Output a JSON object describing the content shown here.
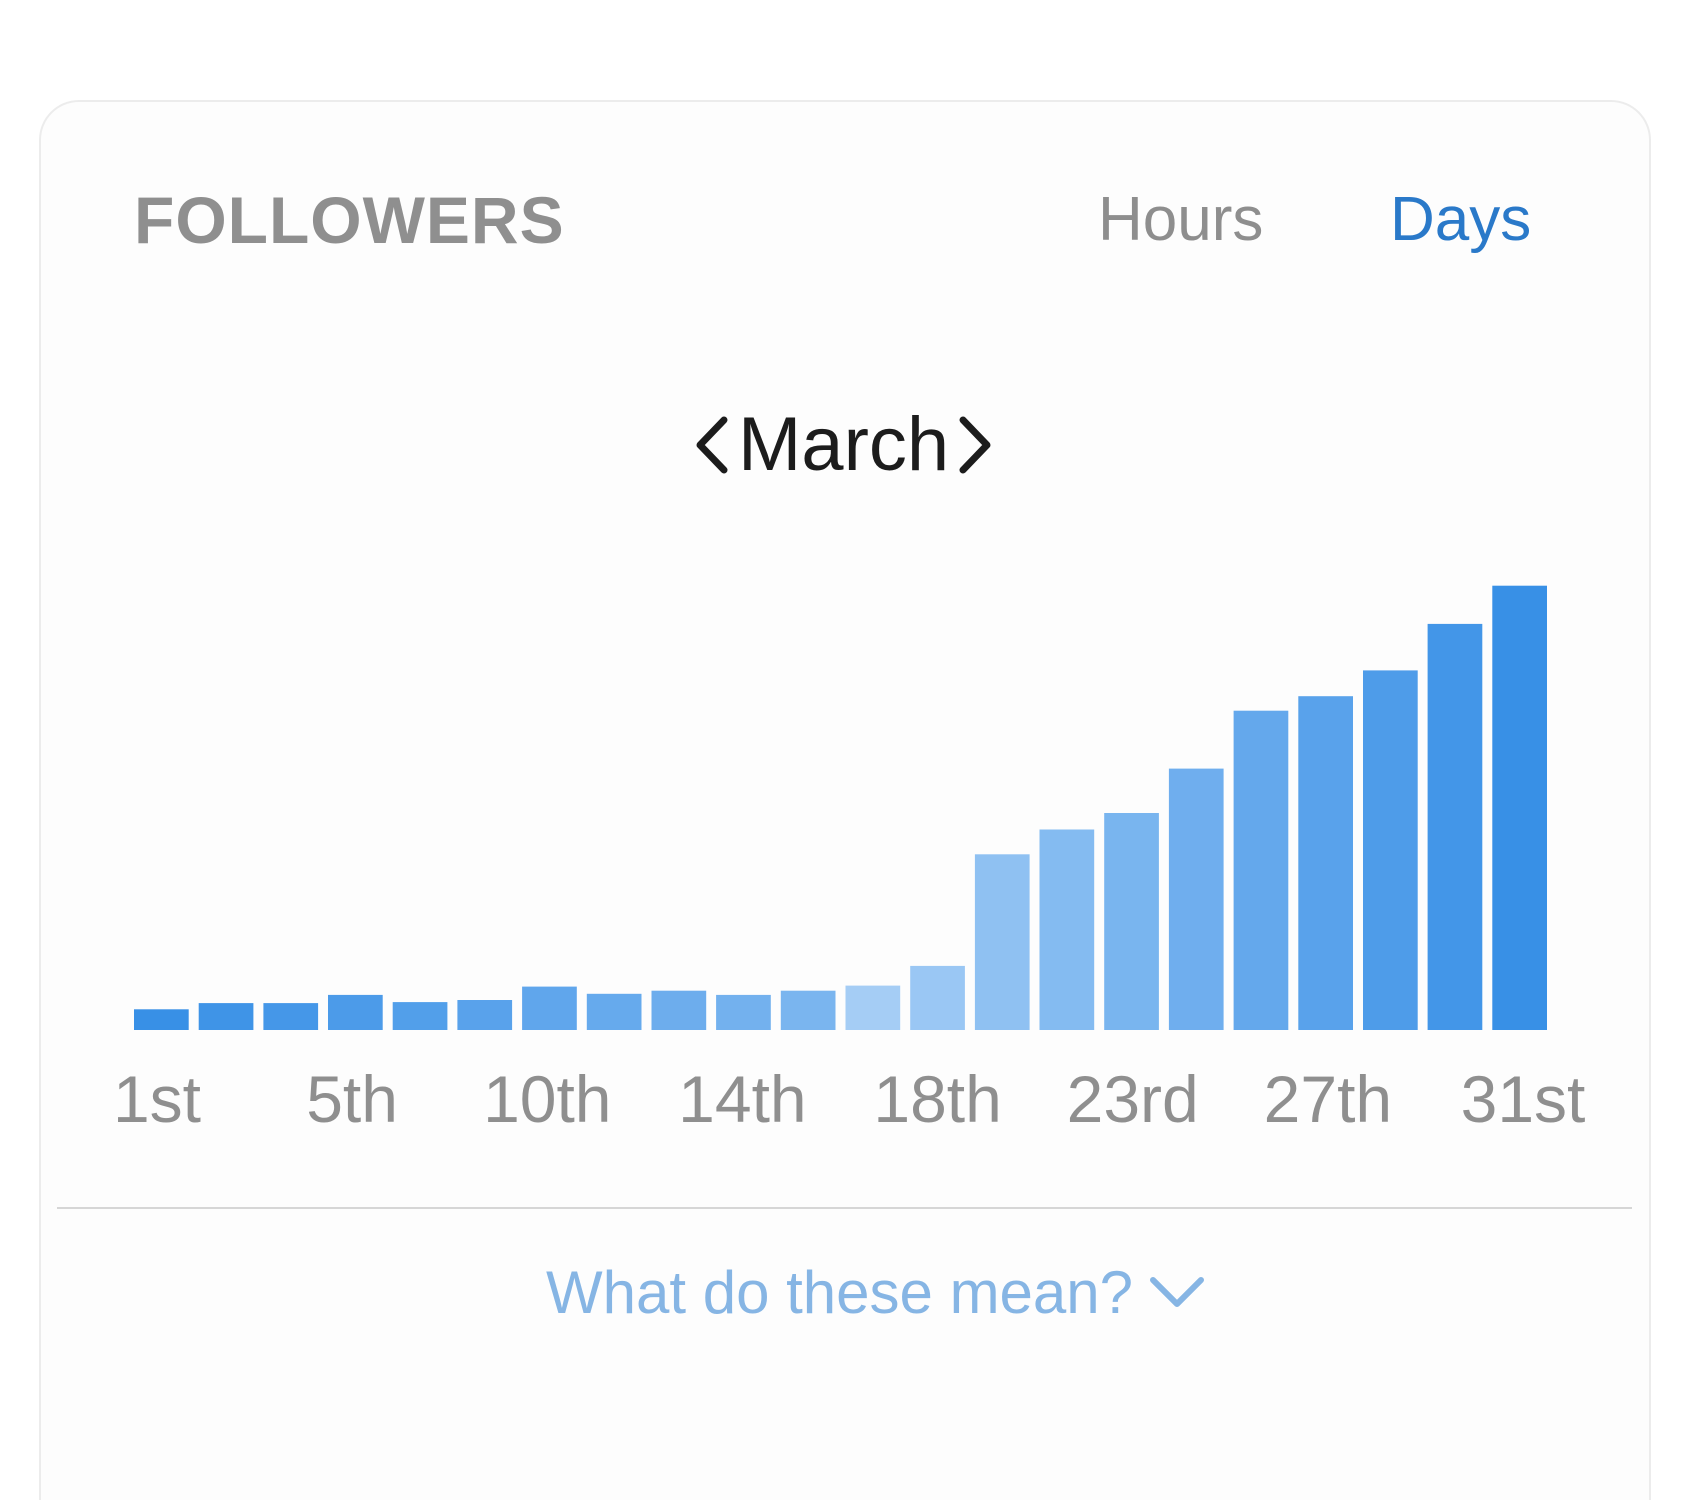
{
  "header": {
    "title": "FOLLOWERS",
    "tabs": [
      {
        "label": "Hours",
        "active": false
      },
      {
        "label": "Days",
        "active": true
      }
    ]
  },
  "month_nav": {
    "label": "March",
    "prev_icon": "chevron-left-icon",
    "next_icon": "chevron-right-icon"
  },
  "footer": {
    "help_label": "What do these mean?",
    "help_icon": "chevron-down-icon"
  },
  "colors": {
    "active_tab": "#2a79c9",
    "bar_light": "#b0d3f7",
    "bar_dark": "#3890e6",
    "help_link": "#86b5e4"
  },
  "chart_data": {
    "type": "bar",
    "x": [
      1,
      2,
      3,
      4,
      5,
      6,
      7,
      8,
      9,
      10,
      11,
      12,
      13,
      14,
      15,
      16,
      17,
      18,
      19,
      20,
      21,
      22
    ],
    "values": [
      20,
      26,
      26,
      34,
      27,
      29,
      42,
      35,
      38,
      34,
      38,
      43,
      62,
      170,
      194,
      210,
      253,
      309,
      323,
      348,
      393,
      430
    ],
    "tick_labels": [
      "1st",
      "5th",
      "10th",
      "14th",
      "18th",
      "23rd",
      "27th",
      "31st"
    ],
    "ylim": [
      0,
      450
    ],
    "grid": false,
    "title": "",
    "xlabel": "",
    "ylabel": ""
  }
}
